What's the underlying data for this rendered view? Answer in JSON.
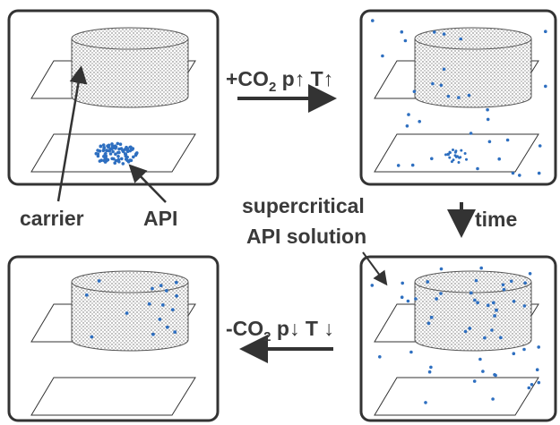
{
  "labels": {
    "carrier": "carrier",
    "api": "API",
    "supercritical": "supercritical",
    "api_solution": "API solution",
    "time": "time"
  },
  "steps": {
    "pressurize": {
      "prefix": "+CO",
      "subscript": "2",
      "suffix": " p↑ T↑"
    },
    "depressurize": {
      "prefix": "-CO",
      "subscript": "2",
      "suffix": " p↓ T ↓"
    }
  }
}
